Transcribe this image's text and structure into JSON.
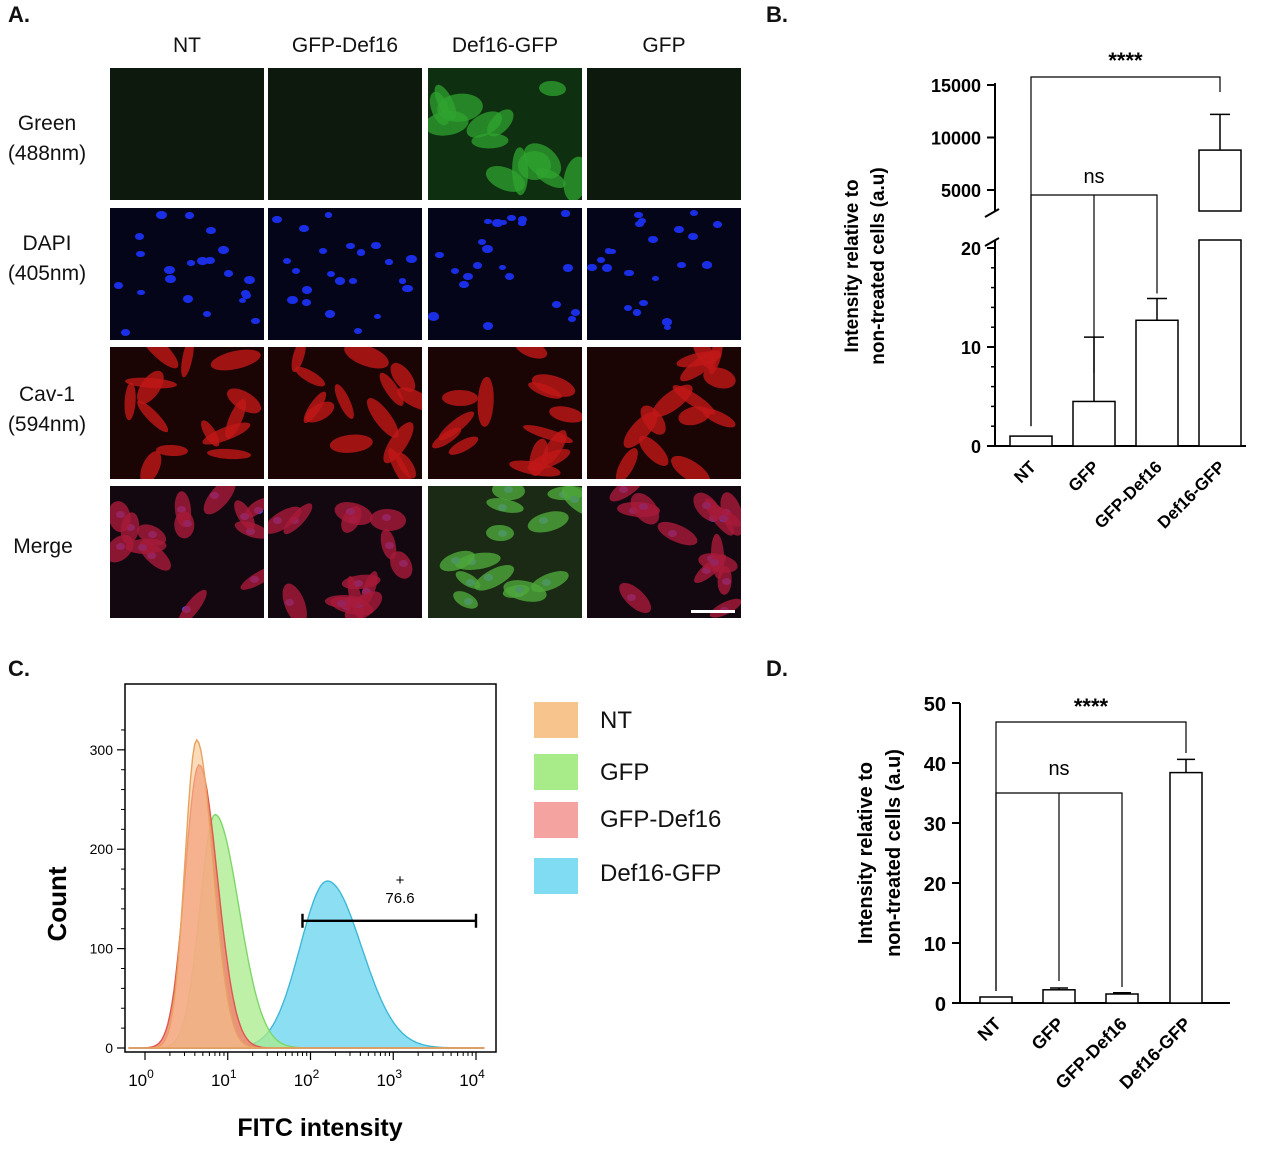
{
  "panel_letters": {
    "a": "A.",
    "b": "B.",
    "c": "C.",
    "d": "D."
  },
  "microscopy": {
    "columns": [
      "NT",
      "GFP-Def16",
      "Def16-GFP",
      "GFP"
    ],
    "rows": [
      {
        "line1": "Green",
        "line2": "(488nm)"
      },
      {
        "line1": "DAPI",
        "line2": "(405nm)"
      },
      {
        "line1": "Cav-1",
        "line2": "(594nm)"
      },
      {
        "line1": "Merge",
        "line2": ""
      }
    ]
  },
  "chart_data": [
    {
      "panel": "B",
      "type": "bar",
      "categories": [
        "NT",
        "GFP",
        "GFP-Def16",
        "Def16-GFP"
      ],
      "values": [
        1,
        4.5,
        12.7,
        8800
      ],
      "errors": [
        0,
        6.5,
        2.2,
        3400
      ],
      "ylabel": "Intensity relative to non-treated cells (a.u)",
      "ylabel_lines": [
        "Intensity relative to",
        "non-treated cells (a.u)"
      ],
      "y_broken": true,
      "y_lower_range": [
        0,
        20
      ],
      "y_lower_ticks": [
        "0",
        "10",
        "20"
      ],
      "y_upper_ticks": [
        "5000",
        "10000",
        "15000"
      ],
      "significance": [
        {
          "from": "NT",
          "to": "Def16-GFP",
          "label": "****"
        },
        {
          "from": "NT",
          "to": [
            "GFP",
            "GFP-Def16"
          ],
          "label": "ns"
        }
      ]
    },
    {
      "panel": "C",
      "type": "area",
      "xlabel": "FITC intensity",
      "ylabel": "Count",
      "x_scale": "log",
      "x_ticks": [
        "10^0",
        "10^1",
        "10^2",
        "10^3",
        "10^4"
      ],
      "y_ticks": [
        "0",
        "100",
        "200",
        "300"
      ],
      "series": [
        {
          "name": "NT",
          "color": "#f7c48e",
          "peak_x": 4.2,
          "peak_count": 310
        },
        {
          "name": "GFP",
          "color": "#a8ec8a",
          "peak_x": 7,
          "peak_count": 235
        },
        {
          "name": "GFP-Def16",
          "color": "#f27c72",
          "peak_x": 4.5,
          "peak_count": 285
        },
        {
          "name": "Def16-GFP",
          "color": "#7fdcf2",
          "peak_x": 160,
          "peak_count": 168
        }
      ],
      "gate": {
        "label_symbol": "+",
        "label_value": "76.6",
        "from": 80,
        "to": 10000
      }
    },
    {
      "panel": "D",
      "type": "bar",
      "categories": [
        "NT",
        "GFP",
        "GFP-Def16",
        "Def16-GFP"
      ],
      "values": [
        1,
        2.2,
        1.5,
        38.4
      ],
      "errors": [
        0,
        0.3,
        0.2,
        2.2
      ],
      "ylabel": "Intensity relative to non-treated cells (a.u)",
      "ylabel_lines": [
        "Intensity relative to",
        "non-treated cells (a.u)"
      ],
      "ylim": [
        0,
        50
      ],
      "y_ticks": [
        "0",
        "10",
        "20",
        "30",
        "40",
        "50"
      ],
      "significance": [
        {
          "from": "NT",
          "to": "Def16-GFP",
          "label": "****"
        },
        {
          "from": "NT",
          "to": [
            "GFP",
            "GFP-Def16"
          ],
          "label": "ns"
        }
      ]
    }
  ],
  "colors": {
    "green_channel": "#0c190c",
    "green_bright": "#2fa32f",
    "dapi_bg": "#05051a",
    "dapi_nuclei": "#1a2ee6",
    "cav1": "#c01818",
    "merge_bg": "#140810"
  }
}
